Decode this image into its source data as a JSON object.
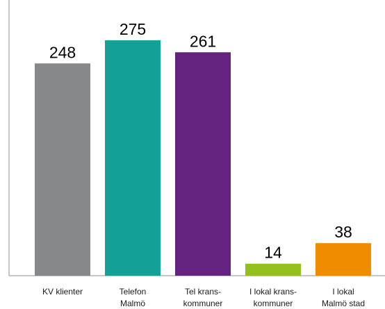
{
  "chart_data": {
    "type": "bar",
    "title": "",
    "xlabel": "",
    "ylabel": "",
    "ylim": [
      0,
      290
    ],
    "grid": false,
    "categories": [
      [
        "KV klienter"
      ],
      [
        "Telefon",
        "Malmö"
      ],
      [
        "Tel krans-",
        "kommuner"
      ],
      [
        "I lokal krans-",
        "kommuner"
      ],
      [
        "I lokal",
        "Malmö stad"
      ]
    ],
    "values": [
      248,
      275,
      261,
      14,
      38
    ],
    "value_labels": [
      "248",
      "275",
      "261",
      "14",
      "38"
    ],
    "colors": [
      "#878889",
      "#13a096",
      "#63237e",
      "#93c01f",
      "#f08c00"
    ]
  }
}
